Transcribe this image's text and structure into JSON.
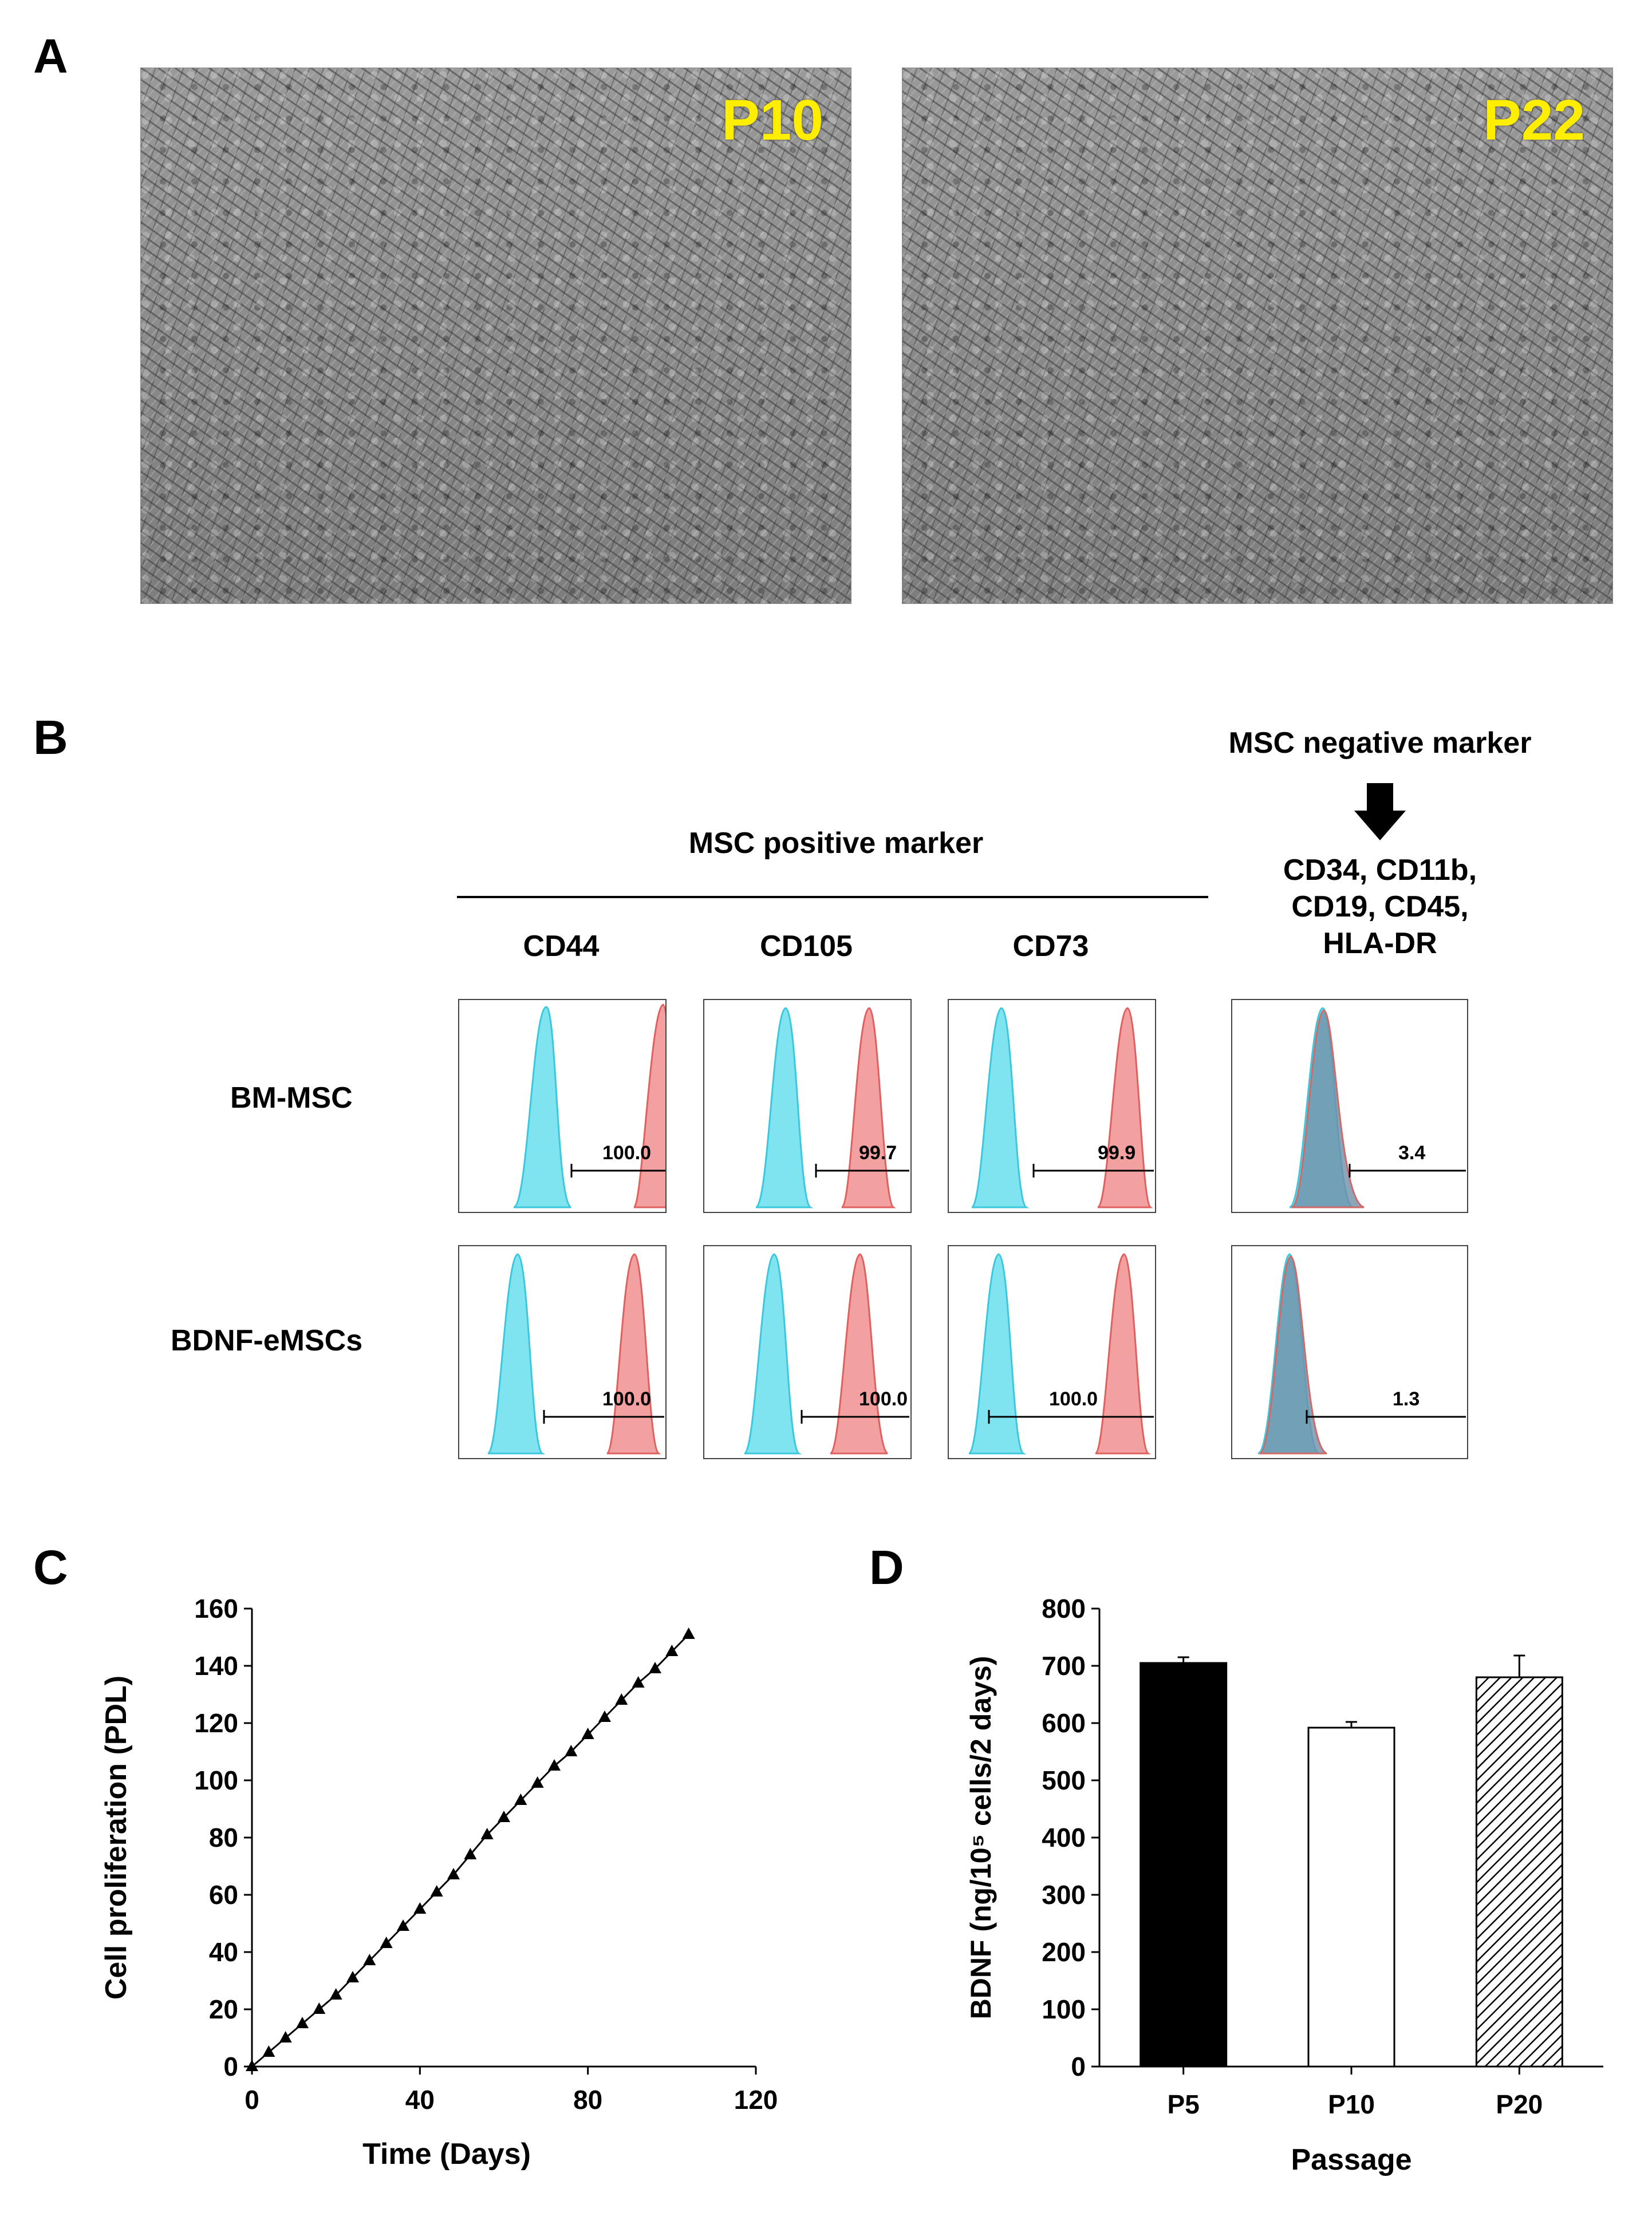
{
  "panels": {
    "a": "A",
    "b": "B",
    "c": "C",
    "d": "D"
  },
  "panel_a": {
    "left_label": "P10",
    "right_label": "P22"
  },
  "panel_b": {
    "negative_header": "MSC negative marker",
    "positive_header": "MSC positive marker",
    "columns": [
      "CD44",
      "CD105",
      "CD73"
    ],
    "negative_markers": [
      "CD34, CD11b,",
      "CD19, CD45,",
      "HLA-DR"
    ],
    "rows": [
      "BM-MSC",
      "BDNF-eMSCs"
    ],
    "values": [
      [
        "100.0",
        "99.7",
        "99.9",
        "3.4"
      ],
      [
        "100.0",
        "100.0",
        "100.0",
        "1.3"
      ]
    ]
  },
  "chart_data": [
    {
      "type": "line",
      "xlabel": "Time (Days)",
      "ylabel": "Cell proliferation (PDL)",
      "xlim": [
        0,
        120
      ],
      "ylim": [
        0,
        160
      ],
      "xticks": [
        "0",
        "40",
        "80",
        "120"
      ],
      "yticks": [
        "0",
        "20",
        "40",
        "60",
        "80",
        "100",
        "120",
        "140",
        "160"
      ],
      "x": [
        0,
        4,
        8,
        12,
        16,
        20,
        24,
        28,
        32,
        36,
        40,
        44,
        48,
        52,
        56,
        60,
        64,
        68,
        72,
        76,
        80,
        84,
        88,
        92,
        96,
        100,
        104
      ],
      "y": [
        0,
        5,
        10,
        15,
        20,
        25,
        31,
        37,
        43,
        49,
        55,
        61,
        67,
        74,
        81,
        87,
        93,
        99,
        105,
        110,
        116,
        122,
        128,
        134,
        139,
        145,
        151
      ]
    },
    {
      "type": "bar",
      "xlabel": "Passage",
      "ylabel": "BDNF (ng/10⁵ cells/2 days)",
      "ylim": [
        0,
        800
      ],
      "yticks": [
        "0",
        "100",
        "200",
        "300",
        "400",
        "500",
        "600",
        "700",
        "800"
      ],
      "categories": [
        "P5",
        "P10",
        "P20"
      ],
      "values": [
        705,
        592,
        680
      ],
      "errors": [
        10,
        10,
        38
      ],
      "fills": [
        "#000000",
        "#ffffff",
        "hatch"
      ]
    }
  ]
}
